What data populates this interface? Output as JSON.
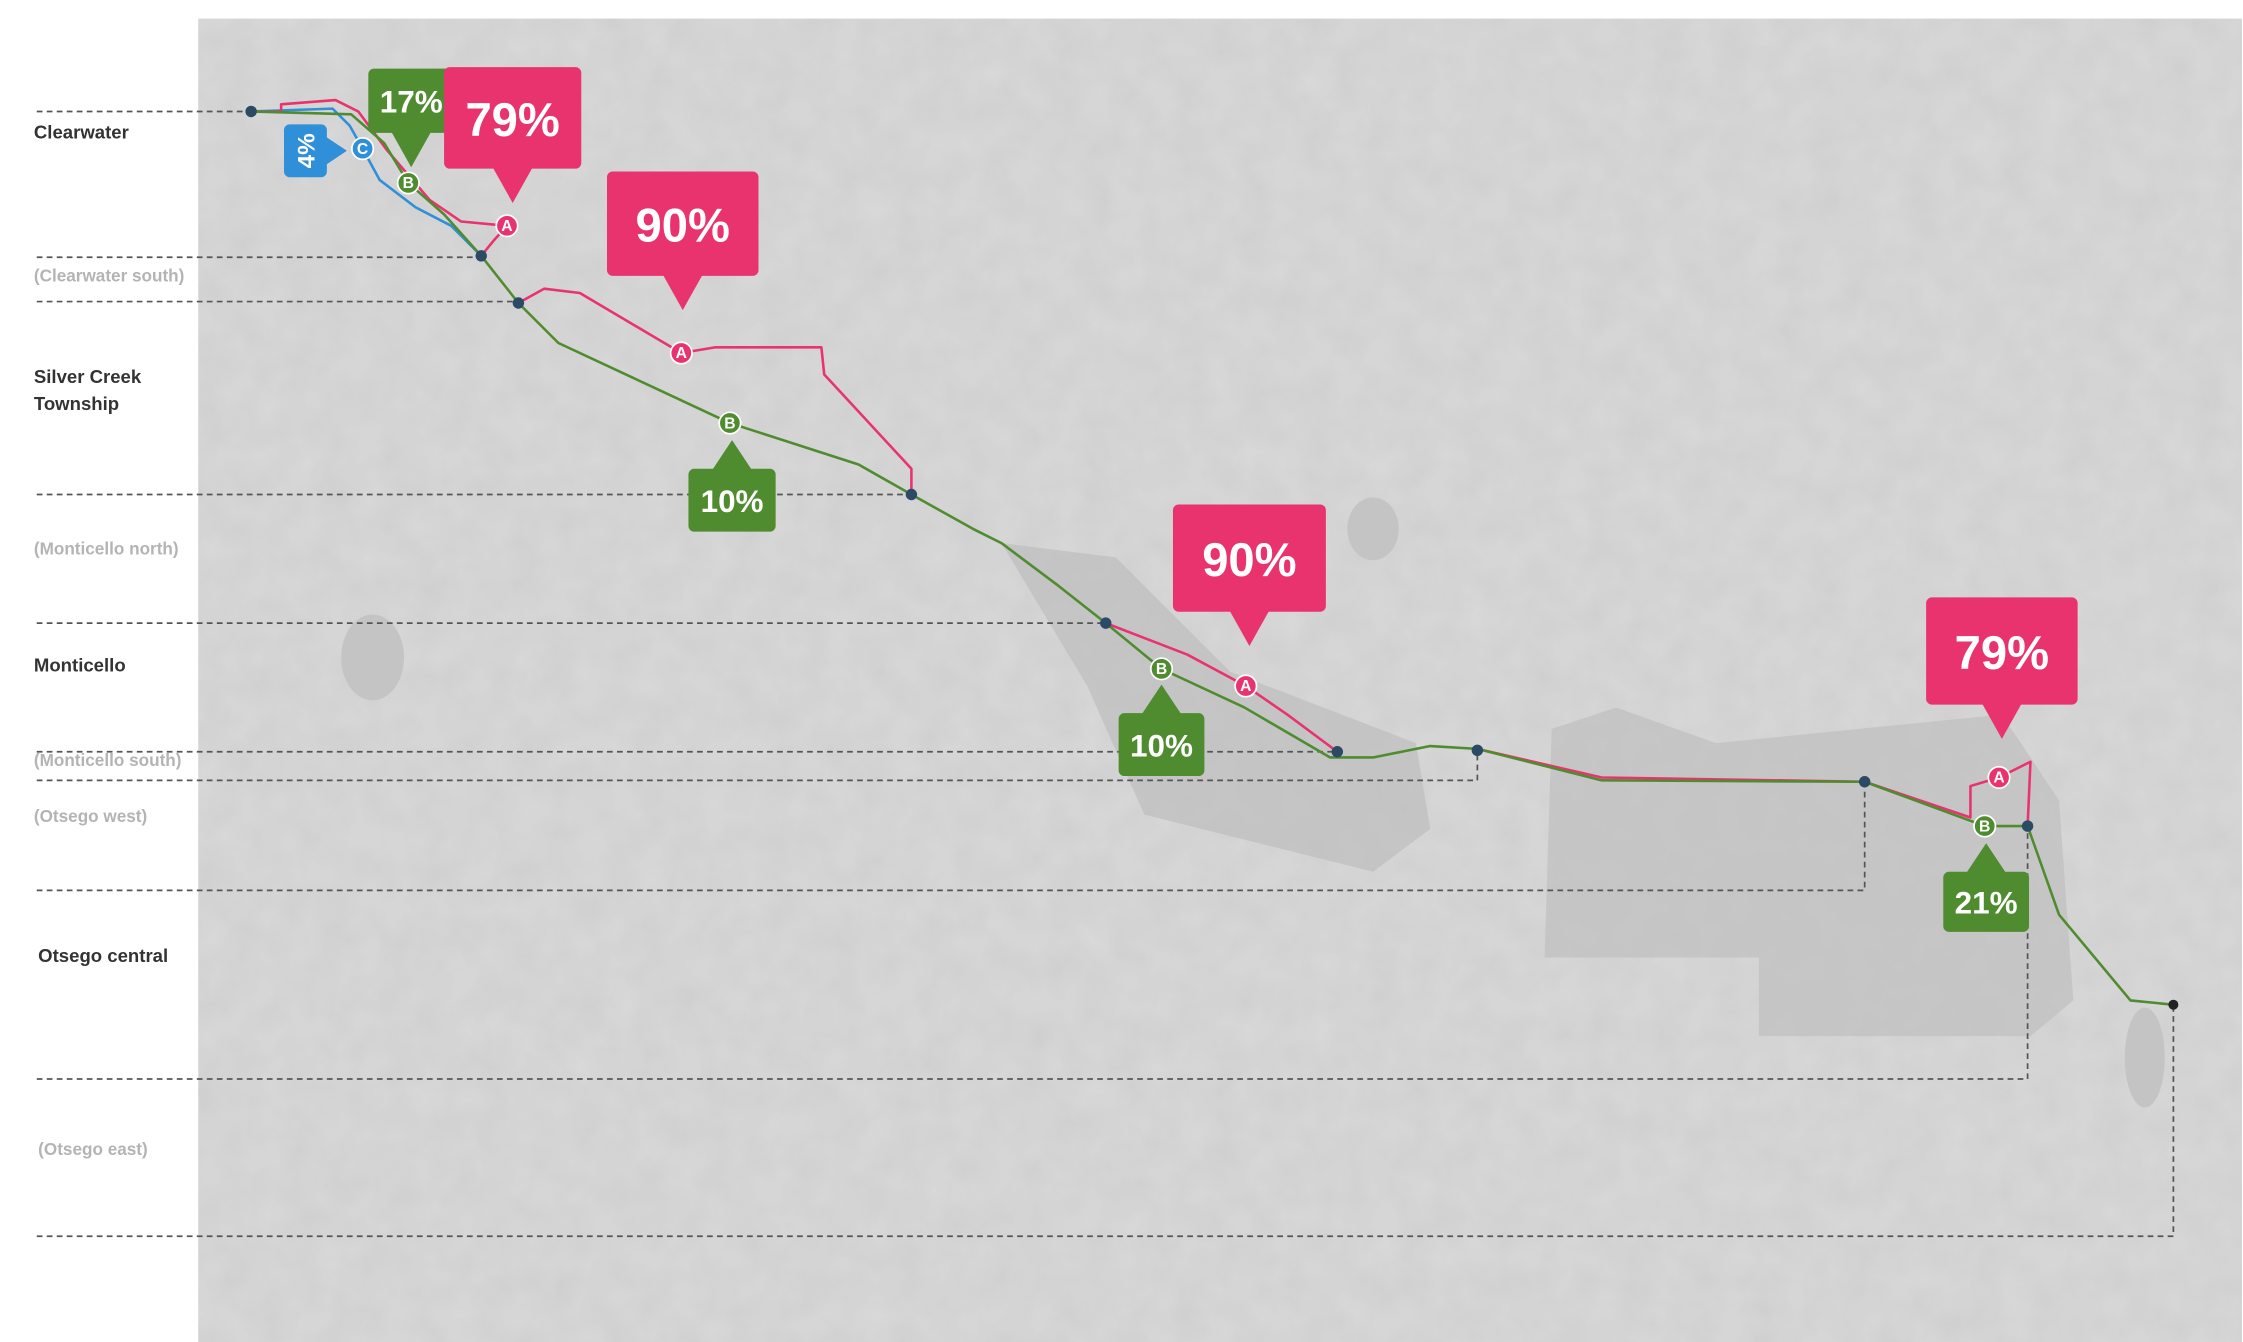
{
  "labels": [
    "Clearwater",
    "(Clearwater south)",
    "Silver Creek Township",
    "(Monticello north)",
    "Monticello",
    "(Monticello south)",
    "(Otsego west)",
    "Otsego central",
    "(Otsego east)"
  ],
  "callouts": [
    {
      "label": "4%",
      "letter": "C"
    },
    {
      "label": "17%",
      "letter": "B"
    },
    {
      "label": "79%",
      "letter": "A"
    },
    {
      "label": "90%",
      "letter": "A"
    },
    {
      "label": "10%",
      "letter": "B"
    },
    {
      "label": "90%",
      "letter": "A"
    },
    {
      "label": "10%",
      "letter": "B"
    },
    {
      "label": "79%",
      "letter": "A"
    },
    {
      "label": "21%",
      "letter": "B"
    }
  ]
}
